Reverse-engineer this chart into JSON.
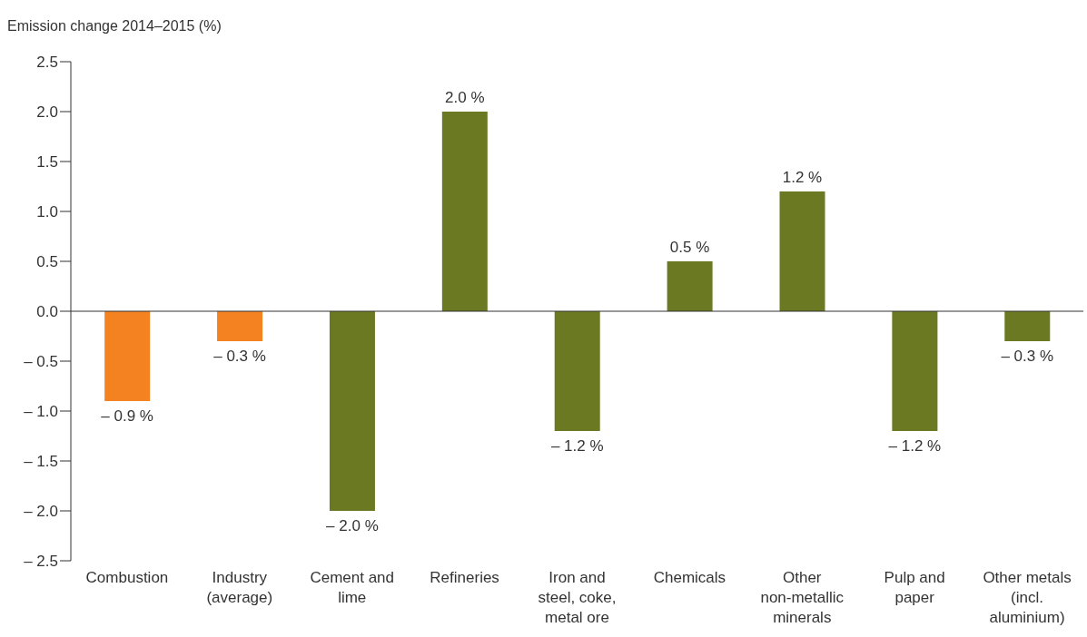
{
  "chart_data": {
    "type": "bar",
    "ylabel": "Emission change 2014–2015 (%)",
    "categories": [
      "Combustion",
      "Industry (average)",
      "Cement and lime",
      "Refineries",
      "Iron and steel, coke, metal ore",
      "Chemicals",
      "Other non-metallic minerals",
      "Pulp and paper",
      "Other metals (incl. aluminium)"
    ],
    "values": [
      -0.9,
      -0.3,
      -2.0,
      2.0,
      -1.2,
      0.5,
      1.2,
      -1.2,
      -0.3
    ],
    "value_labels": [
      "– 0.9 %",
      "– 0.3 %",
      "– 2.0 %",
      "2.0 %",
      "– 1.2 %",
      "0.5 %",
      "1.2 %",
      "– 1.2 %",
      "– 0.3 %"
    ],
    "colors": [
      "#f58220",
      "#f58220",
      "#6b7a22",
      "#6b7a22",
      "#6b7a22",
      "#6b7a22",
      "#6b7a22",
      "#6b7a22",
      "#6b7a22"
    ],
    "ylim": [
      -2.5,
      2.5
    ],
    "yticks": [
      {
        "value": -2.5,
        "label": "– 2.5"
      },
      {
        "value": -2.0,
        "label": "– 2.0"
      },
      {
        "value": -1.5,
        "label": "– 1.5"
      },
      {
        "value": -1.0,
        "label": "– 1.0"
      },
      {
        "value": -0.5,
        "label": "– 0.5"
      },
      {
        "value": 0,
        "label": "0.0"
      },
      {
        "value": 0.5,
        "label": "0.5"
      },
      {
        "value": 1.0,
        "label": "1.0"
      },
      {
        "value": 1.5,
        "label": "1.5"
      },
      {
        "value": 2.0,
        "label": "2.0"
      },
      {
        "value": 2.5,
        "label": "2.5"
      }
    ],
    "legend": false
  }
}
